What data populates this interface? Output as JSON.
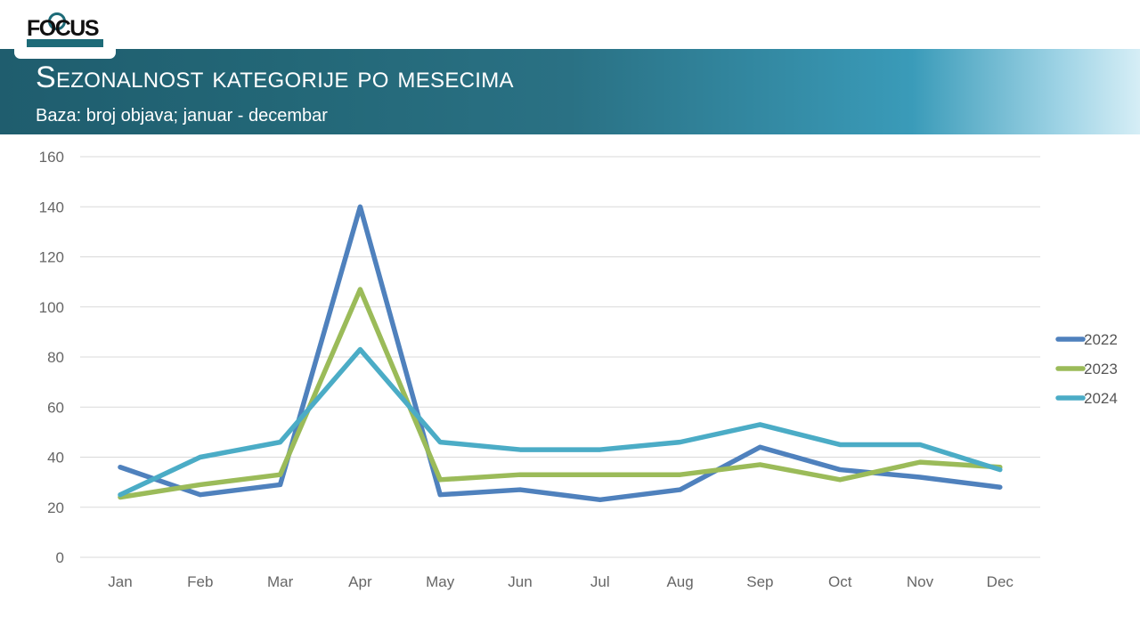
{
  "header": {
    "logo_text": "FOCUS",
    "title": "Sezonalnost kategorije po mesecima",
    "subtitle": "Baza: broj objava; januar - decembar"
  },
  "chart_data": {
    "type": "line",
    "categories": [
      "Jan",
      "Feb",
      "Mar",
      "Apr",
      "May",
      "Jun",
      "Jul",
      "Aug",
      "Sep",
      "Oct",
      "Nov",
      "Dec"
    ],
    "ylim": [
      0,
      160
    ],
    "yticks": [
      0,
      20,
      40,
      60,
      80,
      100,
      120,
      140,
      160
    ],
    "grid": true,
    "legend_position": "right",
    "series": [
      {
        "name": "2022",
        "color": "#4f81bd",
        "values": [
          36,
          25,
          29,
          140,
          25,
          27,
          23,
          27,
          44,
          35,
          32,
          28
        ]
      },
      {
        "name": "2023",
        "color": "#9bbb59",
        "values": [
          24,
          29,
          33,
          107,
          31,
          33,
          33,
          33,
          37,
          31,
          38,
          36
        ]
      },
      {
        "name": "2024",
        "color": "#4bacc6",
        "values": [
          25,
          40,
          46,
          83,
          46,
          43,
          43,
          46,
          53,
          45,
          45,
          35
        ]
      }
    ]
  }
}
